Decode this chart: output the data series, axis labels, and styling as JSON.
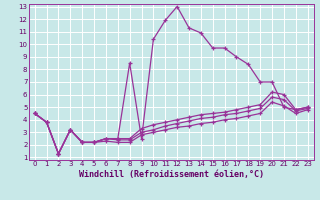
{
  "xlabel": "Windchill (Refroidissement éolien,°C)",
  "background_color": "#c8e8e8",
  "grid_color": "#ffffff",
  "line_color": "#993399",
  "xlim": [
    -0.5,
    23.5
  ],
  "ylim": [
    0.8,
    13.2
  ],
  "xticks": [
    0,
    1,
    2,
    3,
    4,
    5,
    6,
    7,
    8,
    9,
    10,
    11,
    12,
    13,
    14,
    15,
    16,
    17,
    18,
    19,
    20,
    21,
    22,
    23
  ],
  "yticks": [
    1,
    2,
    3,
    4,
    5,
    6,
    7,
    8,
    9,
    10,
    11,
    12,
    13
  ],
  "line1_x": [
    0,
    1,
    2,
    3,
    4,
    5,
    6,
    7,
    8,
    9,
    10,
    11,
    12,
    13,
    14,
    15,
    16,
    17,
    18,
    19,
    20,
    21,
    22,
    23
  ],
  "line1_y": [
    4.5,
    3.8,
    1.3,
    3.2,
    2.2,
    2.2,
    2.5,
    2.5,
    8.5,
    2.5,
    10.4,
    11.9,
    13.0,
    11.3,
    10.9,
    9.7,
    9.7,
    9.0,
    8.4,
    7.0,
    7.0,
    5.0,
    4.8,
    5.0
  ],
  "line2_x": [
    0,
    1,
    2,
    3,
    4,
    5,
    6,
    7,
    8,
    9,
    10,
    11,
    12,
    13,
    14,
    15,
    16,
    17,
    18,
    19,
    20,
    21,
    22,
    23
  ],
  "line2_y": [
    4.5,
    3.8,
    1.3,
    3.2,
    2.2,
    2.2,
    2.5,
    2.5,
    2.5,
    3.3,
    3.6,
    3.8,
    4.0,
    4.2,
    4.4,
    4.5,
    4.6,
    4.8,
    5.0,
    5.2,
    6.2,
    6.0,
    4.8,
    5.0
  ],
  "line3_x": [
    0,
    1,
    2,
    3,
    4,
    5,
    6,
    7,
    8,
    9,
    10,
    11,
    12,
    13,
    14,
    15,
    16,
    17,
    18,
    19,
    20,
    21,
    22,
    23
  ],
  "line3_y": [
    4.5,
    3.8,
    1.3,
    3.2,
    2.2,
    2.2,
    2.5,
    2.4,
    2.4,
    3.0,
    3.2,
    3.5,
    3.7,
    3.9,
    4.1,
    4.2,
    4.4,
    4.5,
    4.7,
    4.9,
    5.8,
    5.6,
    4.7,
    4.9
  ],
  "line4_x": [
    0,
    1,
    2,
    3,
    4,
    5,
    6,
    7,
    8,
    9,
    10,
    11,
    12,
    13,
    14,
    15,
    16,
    17,
    18,
    19,
    20,
    21,
    22,
    23
  ],
  "line4_y": [
    4.5,
    3.8,
    1.3,
    3.2,
    2.2,
    2.2,
    2.3,
    2.2,
    2.2,
    2.8,
    3.0,
    3.2,
    3.4,
    3.5,
    3.7,
    3.8,
    4.0,
    4.1,
    4.3,
    4.5,
    5.4,
    5.1,
    4.5,
    4.8
  ]
}
